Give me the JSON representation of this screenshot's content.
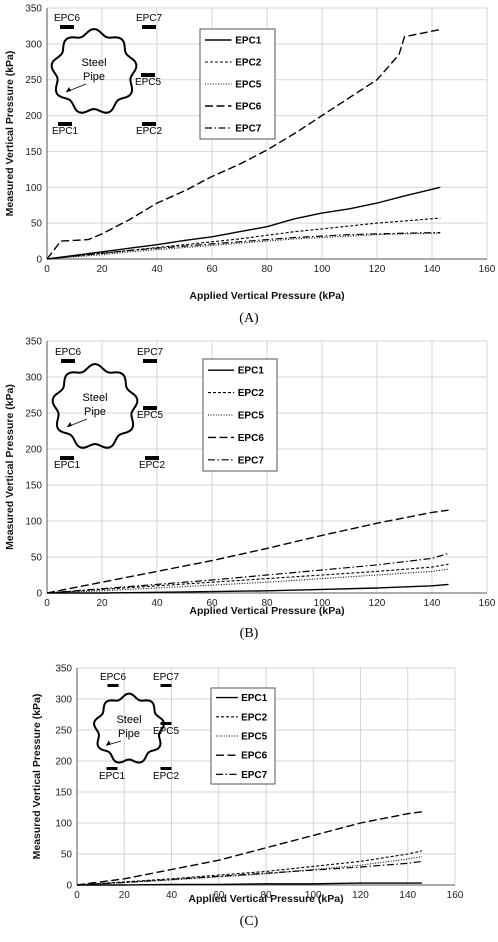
{
  "chart_data": [
    {
      "type": "line",
      "panel_label": "(A)",
      "xlabel": "Applied Vertical Pressure (kPa)",
      "ylabel": "Measured Vertical Pressure (kPa)",
      "xlim": [
        0,
        160
      ],
      "ylim": [
        0,
        350
      ],
      "xticks": [
        0,
        20,
        40,
        60,
        80,
        100,
        120,
        140,
        160
      ],
      "yticks": [
        0,
        50,
        100,
        150,
        200,
        250,
        300,
        350
      ],
      "grid": true,
      "legend_position": "top-right",
      "inset": {
        "pipe_label": "Steel Pipe",
        "sensors": [
          "EPC6",
          "EPC7",
          "EPC5",
          "EPC1",
          "EPC2"
        ]
      },
      "series": [
        {
          "name": "EPC1",
          "dash": "solid",
          "x": [
            0,
            10,
            20,
            30,
            40,
            50,
            60,
            70,
            80,
            90,
            100,
            110,
            120,
            130,
            143
          ],
          "y": [
            0,
            5,
            10,
            15,
            20,
            26,
            31,
            38,
            45,
            56,
            64,
            70,
            78,
            88,
            100
          ]
        },
        {
          "name": "EPC2",
          "dash": "short-dash",
          "x": [
            0,
            10,
            20,
            30,
            40,
            50,
            60,
            70,
            80,
            90,
            100,
            110,
            120,
            130,
            143
          ],
          "y": [
            0,
            4,
            8,
            12,
            16,
            20,
            24,
            28,
            33,
            38,
            42,
            46,
            50,
            53,
            57
          ]
        },
        {
          "name": "EPC5",
          "dash": "dotted",
          "x": [
            0,
            10,
            20,
            30,
            40,
            50,
            60,
            70,
            80,
            90,
            100,
            110,
            120,
            130,
            143
          ],
          "y": [
            0,
            3,
            6,
            10,
            13,
            16,
            19,
            22,
            25,
            28,
            30,
            32,
            34,
            35,
            36
          ]
        },
        {
          "name": "EPC6",
          "dash": "long-dash",
          "x": [
            0,
            5,
            15,
            20,
            30,
            40,
            50,
            60,
            70,
            80,
            90,
            100,
            110,
            120,
            128,
            130,
            143
          ],
          "y": [
            0,
            25,
            27,
            35,
            55,
            78,
            95,
            115,
            132,
            152,
            175,
            200,
            225,
            250,
            285,
            310,
            320
          ]
        },
        {
          "name": "EPC7",
          "dash": "dash-dot",
          "x": [
            0,
            10,
            20,
            30,
            40,
            50,
            60,
            70,
            80,
            90,
            100,
            110,
            120,
            130,
            143
          ],
          "y": [
            0,
            4,
            8,
            12,
            15,
            18,
            21,
            24,
            27,
            30,
            32,
            34,
            35,
            36,
            37
          ]
        }
      ]
    },
    {
      "type": "line",
      "panel_label": "(B)",
      "xlabel": "Applied Vertical Pressure (kPa)",
      "ylabel": "Measured Vertical Pressure (kPa)",
      "xlim": [
        0,
        160
      ],
      "ylim": [
        0,
        350
      ],
      "xticks": [
        0,
        20,
        40,
        60,
        80,
        100,
        120,
        140,
        160
      ],
      "yticks": [
        0,
        50,
        100,
        150,
        200,
        250,
        300,
        350
      ],
      "grid": true,
      "legend_position": "top-right",
      "inset": {
        "pipe_label": "Steel Pipe",
        "sensors": [
          "EPC6",
          "EPC7",
          "EPC5",
          "EPC1",
          "EPC2"
        ]
      },
      "series": [
        {
          "name": "EPC1",
          "dash": "solid",
          "x": [
            0,
            20,
            40,
            60,
            80,
            100,
            120,
            140,
            146
          ],
          "y": [
            0,
            0,
            1,
            2,
            3,
            5,
            7,
            10,
            12
          ]
        },
        {
          "name": "EPC2",
          "dash": "short-dash",
          "x": [
            0,
            20,
            40,
            60,
            80,
            100,
            120,
            140,
            146
          ],
          "y": [
            0,
            5,
            10,
            15,
            20,
            25,
            30,
            36,
            40
          ]
        },
        {
          "name": "EPC5",
          "dash": "dotted",
          "x": [
            0,
            20,
            40,
            60,
            80,
            100,
            120,
            140,
            146
          ],
          "y": [
            0,
            3,
            7,
            11,
            15,
            20,
            25,
            30,
            33
          ]
        },
        {
          "name": "EPC6",
          "dash": "long-dash",
          "x": [
            0,
            20,
            40,
            60,
            80,
            100,
            120,
            140,
            146
          ],
          "y": [
            0,
            15,
            30,
            45,
            62,
            80,
            97,
            112,
            115
          ]
        },
        {
          "name": "EPC7",
          "dash": "dash-dot",
          "x": [
            0,
            20,
            40,
            60,
            80,
            100,
            120,
            140,
            146
          ],
          "y": [
            0,
            6,
            12,
            18,
            25,
            32,
            39,
            48,
            55
          ]
        }
      ]
    },
    {
      "type": "line",
      "panel_label": "(C)",
      "xlabel": "Applied Vertical Pressure (kPa)",
      "ylabel": "Measured Vertical Pressure\n(kPa)",
      "xlim": [
        0,
        160
      ],
      "ylim": [
        0,
        350
      ],
      "xticks": [
        0,
        20,
        40,
        60,
        80,
        100,
        120,
        140,
        160
      ],
      "yticks": [
        0,
        50,
        100,
        150,
        200,
        250,
        300,
        350
      ],
      "grid": true,
      "legend_position": "top-right",
      "inset": {
        "pipe_label": "Steel Pipe",
        "sensors": [
          "EPC6",
          "EPC7",
          "EPC5",
          "EPC1",
          "EPC2"
        ]
      },
      "series": [
        {
          "name": "EPC1",
          "dash": "solid",
          "x": [
            0,
            20,
            40,
            60,
            80,
            100,
            120,
            140,
            146
          ],
          "y": [
            0,
            0,
            1,
            1,
            2,
            2,
            3,
            3,
            3
          ]
        },
        {
          "name": "EPC2",
          "dash": "short-dash",
          "x": [
            0,
            20,
            40,
            60,
            80,
            100,
            120,
            140,
            146
          ],
          "y": [
            0,
            5,
            10,
            16,
            22,
            30,
            38,
            50,
            55
          ]
        },
        {
          "name": "EPC5",
          "dash": "dotted",
          "x": [
            0,
            20,
            40,
            60,
            80,
            100,
            120,
            140,
            146
          ],
          "y": [
            0,
            4,
            8,
            13,
            18,
            25,
            32,
            42,
            46
          ]
        },
        {
          "name": "EPC6",
          "dash": "long-dash",
          "x": [
            0,
            20,
            40,
            60,
            80,
            100,
            120,
            140,
            146
          ],
          "y": [
            0,
            10,
            25,
            40,
            60,
            80,
            100,
            115,
            118
          ]
        },
        {
          "name": "EPC7",
          "dash": "dash-dot",
          "x": [
            0,
            20,
            40,
            60,
            80,
            100,
            120,
            140,
            146
          ],
          "y": [
            0,
            4,
            9,
            14,
            19,
            24,
            29,
            35,
            38
          ]
        }
      ]
    }
  ]
}
